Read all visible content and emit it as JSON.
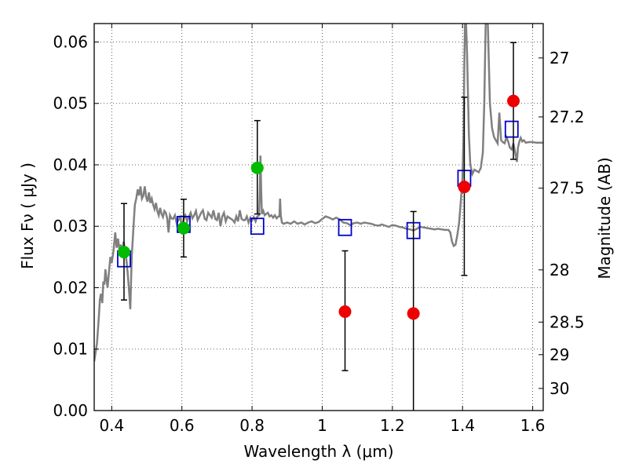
{
  "chart_data": {
    "type": "scatter",
    "xlabel": "Wavelength  λ (μm)",
    "ylabel": "Flux  Fν  ( μJy )",
    "ylabel_right": "Magnitude (AB)",
    "xlim": [
      0.35,
      1.63
    ],
    "ylim": [
      0.0,
      0.063
    ],
    "grid": true,
    "x_ticks": [
      0.4,
      0.6,
      0.8,
      1.0,
      1.2,
      1.4,
      1.6
    ],
    "x_tick_labels": [
      "0.4",
      "0.6",
      "0.8",
      "1",
      "1.2",
      "1.4",
      "1.6"
    ],
    "y_ticks": [
      0.0,
      0.01,
      0.02,
      0.03,
      0.04,
      0.05,
      0.06
    ],
    "y_tick_labels": [
      "0.00",
      "0.01",
      "0.02",
      "0.03",
      "0.04",
      "0.05",
      "0.06"
    ],
    "right_axis_ticks": [
      {
        "label": "27",
        "flux": 0.0574
      },
      {
        "label": "27.2",
        "flux": 0.0478
      },
      {
        "label": "27.5",
        "flux": 0.0362
      },
      {
        "label": "28",
        "flux": 0.0229
      },
      {
        "label": "28.5",
        "flux": 0.0144
      },
      {
        "label": "29",
        "flux": 0.0091
      },
      {
        "label": "30",
        "flux": 0.0036
      }
    ],
    "series": [
      {
        "marker": "line",
        "color": "#808080",
        "points": [
          [
            0.35,
            0.008
          ],
          [
            0.358,
            0.011
          ],
          [
            0.363,
            0.015
          ],
          [
            0.366,
            0.018
          ],
          [
            0.369,
            0.019
          ],
          [
            0.373,
            0.0175
          ],
          [
            0.376,
            0.021
          ],
          [
            0.379,
            0.0205
          ],
          [
            0.382,
            0.023
          ],
          [
            0.385,
            0.0215
          ],
          [
            0.388,
            0.02
          ],
          [
            0.392,
            0.0225
          ],
          [
            0.396,
            0.025
          ],
          [
            0.4,
            0.024
          ],
          [
            0.405,
            0.026
          ],
          [
            0.41,
            0.029
          ],
          [
            0.414,
            0.0265
          ],
          [
            0.418,
            0.028
          ],
          [
            0.422,
            0.026
          ],
          [
            0.426,
            0.027
          ],
          [
            0.43,
            0.0255
          ],
          [
            0.434,
            0.0275
          ],
          [
            0.438,
            0.026
          ],
          [
            0.442,
            0.0245
          ],
          [
            0.446,
            0.022
          ],
          [
            0.45,
            0.019
          ],
          [
            0.453,
            0.0165
          ],
          [
            0.457,
            0.025
          ],
          [
            0.462,
            0.03
          ],
          [
            0.466,
            0.0335
          ],
          [
            0.47,
            0.0345
          ],
          [
            0.474,
            0.036
          ],
          [
            0.478,
            0.035
          ],
          [
            0.482,
            0.0365
          ],
          [
            0.486,
            0.0345
          ],
          [
            0.49,
            0.035
          ],
          [
            0.494,
            0.0365
          ],
          [
            0.498,
            0.0348
          ],
          [
            0.502,
            0.034
          ],
          [
            0.506,
            0.0355
          ],
          [
            0.51,
            0.0338
          ],
          [
            0.514,
            0.0345
          ],
          [
            0.518,
            0.0335
          ],
          [
            0.522,
            0.0328
          ],
          [
            0.526,
            0.0338
          ],
          [
            0.53,
            0.0325
          ],
          [
            0.534,
            0.0318
          ],
          [
            0.538,
            0.033
          ],
          [
            0.542,
            0.032
          ],
          [
            0.546,
            0.0315
          ],
          [
            0.55,
            0.0325
          ],
          [
            0.554,
            0.0322
          ],
          [
            0.558,
            0.0313
          ],
          [
            0.562,
            0.029
          ],
          [
            0.566,
            0.0318
          ],
          [
            0.57,
            0.0313
          ],
          [
            0.575,
            0.0312
          ],
          [
            0.58,
            0.0318
          ],
          [
            0.585,
            0.0305
          ],
          [
            0.59,
            0.031
          ],
          [
            0.595,
            0.0315
          ],
          [
            0.6,
            0.03
          ],
          [
            0.605,
            0.0312
          ],
          [
            0.61,
            0.0318
          ],
          [
            0.615,
            0.0308
          ],
          [
            0.62,
            0.0316
          ],
          [
            0.625,
            0.0322
          ],
          [
            0.63,
            0.0313
          ],
          [
            0.635,
            0.0318
          ],
          [
            0.64,
            0.0325
          ],
          [
            0.645,
            0.031
          ],
          [
            0.65,
            0.0316
          ],
          [
            0.655,
            0.0322
          ],
          [
            0.66,
            0.0326
          ],
          [
            0.665,
            0.0312
          ],
          [
            0.67,
            0.031
          ],
          [
            0.675,
            0.0322
          ],
          [
            0.68,
            0.0318
          ],
          [
            0.685,
            0.0314
          ],
          [
            0.69,
            0.0326
          ],
          [
            0.695,
            0.0312
          ],
          [
            0.7,
            0.031
          ],
          [
            0.705,
            0.0322
          ],
          [
            0.71,
            0.03
          ],
          [
            0.715,
            0.0316
          ],
          [
            0.72,
            0.0322
          ],
          [
            0.725,
            0.0308
          ],
          [
            0.73,
            0.0316
          ],
          [
            0.735,
            0.0314
          ],
          [
            0.74,
            0.0312
          ],
          [
            0.745,
            0.031
          ],
          [
            0.75,
            0.0306
          ],
          [
            0.755,
            0.0316
          ],
          [
            0.76,
            0.0308
          ],
          [
            0.765,
            0.0326
          ],
          [
            0.77,
            0.0312
          ],
          [
            0.775,
            0.031
          ],
          [
            0.78,
            0.031
          ],
          [
            0.785,
            0.0316
          ],
          [
            0.79,
            0.0306
          ],
          [
            0.795,
            0.0314
          ],
          [
            0.8,
            0.031
          ],
          [
            0.805,
            0.0315
          ],
          [
            0.81,
            0.0308
          ],
          [
            0.815,
            0.0316
          ],
          [
            0.82,
            0.0318
          ],
          [
            0.822,
            0.0355
          ],
          [
            0.824,
            0.0415
          ],
          [
            0.826,
            0.036
          ],
          [
            0.828,
            0.032
          ],
          [
            0.832,
            0.0325
          ],
          [
            0.836,
            0.0318
          ],
          [
            0.84,
            0.032
          ],
          [
            0.845,
            0.0322
          ],
          [
            0.85,
            0.0316
          ],
          [
            0.855,
            0.0318
          ],
          [
            0.86,
            0.0314
          ],
          [
            0.865,
            0.0318
          ],
          [
            0.87,
            0.0313
          ],
          [
            0.875,
            0.0316
          ],
          [
            0.878,
            0.0316
          ],
          [
            0.88,
            0.0345
          ],
          [
            0.882,
            0.0318
          ],
          [
            0.885,
            0.0306
          ],
          [
            0.89,
            0.0304
          ],
          [
            0.9,
            0.0306
          ],
          [
            0.91,
            0.0304
          ],
          [
            0.92,
            0.0308
          ],
          [
            0.93,
            0.0304
          ],
          [
            0.94,
            0.0306
          ],
          [
            0.95,
            0.0303
          ],
          [
            0.96,
            0.0306
          ],
          [
            0.97,
            0.0308
          ],
          [
            0.98,
            0.0305
          ],
          [
            0.99,
            0.0307
          ],
          [
            1.0,
            0.0312
          ],
          [
            1.01,
            0.0316
          ],
          [
            1.02,
            0.0314
          ],
          [
            1.03,
            0.0311
          ],
          [
            1.04,
            0.0314
          ],
          [
            1.05,
            0.0311
          ],
          [
            1.06,
            0.0306
          ],
          [
            1.07,
            0.0305
          ],
          [
            1.08,
            0.0302
          ],
          [
            1.09,
            0.0305
          ],
          [
            1.1,
            0.0306
          ],
          [
            1.11,
            0.0304
          ],
          [
            1.12,
            0.0306
          ],
          [
            1.13,
            0.0305
          ],
          [
            1.14,
            0.0304
          ],
          [
            1.15,
            0.0302
          ],
          [
            1.16,
            0.0301
          ],
          [
            1.17,
            0.0303
          ],
          [
            1.18,
            0.0301
          ],
          [
            1.19,
            0.0299
          ],
          [
            1.2,
            0.0302
          ],
          [
            1.21,
            0.0301
          ],
          [
            1.22,
            0.0299
          ],
          [
            1.23,
            0.0298
          ],
          [
            1.24,
            0.0296
          ],
          [
            1.25,
            0.0295
          ],
          [
            1.26,
            0.0293
          ],
          [
            1.27,
            0.0296
          ],
          [
            1.28,
            0.0299
          ],
          [
            1.29,
            0.0298
          ],
          [
            1.3,
            0.0297
          ],
          [
            1.31,
            0.0296
          ],
          [
            1.32,
            0.0295
          ],
          [
            1.33,
            0.0296
          ],
          [
            1.34,
            0.0295
          ],
          [
            1.35,
            0.0294
          ],
          [
            1.36,
            0.0294
          ],
          [
            1.365,
            0.029
          ],
          [
            1.37,
            0.0275
          ],
          [
            1.375,
            0.0268
          ],
          [
            1.38,
            0.027
          ],
          [
            1.385,
            0.0285
          ],
          [
            1.39,
            0.0305
          ],
          [
            1.395,
            0.034
          ],
          [
            1.4,
            0.038
          ],
          [
            1.403,
            0.045
          ],
          [
            1.405,
            0.056
          ],
          [
            1.407,
            0.063
          ],
          [
            1.41,
            0.063
          ],
          [
            1.413,
            0.058
          ],
          [
            1.418,
            0.045
          ],
          [
            1.422,
            0.04
          ],
          [
            1.428,
            0.0385
          ],
          [
            1.434,
            0.0392
          ],
          [
            1.44,
            0.039
          ],
          [
            1.446,
            0.0388
          ],
          [
            1.452,
            0.0395
          ],
          [
            1.458,
            0.042
          ],
          [
            1.462,
            0.05
          ],
          [
            1.466,
            0.063
          ],
          [
            1.472,
            0.063
          ],
          [
            1.478,
            0.05
          ],
          [
            1.484,
            0.046
          ],
          [
            1.49,
            0.0445
          ],
          [
            1.495,
            0.044
          ],
          [
            1.5,
            0.0435
          ],
          [
            1.505,
            0.0485
          ],
          [
            1.51,
            0.044
          ],
          [
            1.515,
            0.0437
          ],
          [
            1.52,
            0.0435
          ],
          [
            1.525,
            0.0445
          ],
          [
            1.53,
            0.0438
          ],
          [
            1.535,
            0.0428
          ],
          [
            1.54,
            0.0425
          ],
          [
            1.545,
            0.0435
          ],
          [
            1.55,
            0.042
          ],
          [
            1.555,
            0.0405
          ],
          [
            1.558,
            0.0428
          ],
          [
            1.562,
            0.0438
          ],
          [
            1.566,
            0.0444
          ],
          [
            1.57,
            0.0438
          ],
          [
            1.575,
            0.044
          ],
          [
            1.58,
            0.0436
          ],
          [
            1.59,
            0.0437
          ],
          [
            1.6,
            0.0437
          ],
          [
            1.61,
            0.0436
          ],
          [
            1.62,
            0.0436
          ],
          [
            1.63,
            0.0436
          ]
        ]
      },
      {
        "marker": "open-square",
        "color": "#0000cc",
        "x": [
          0.435,
          0.605,
          0.815,
          1.065,
          1.26,
          1.405,
          1.54
        ],
        "y": [
          0.0247,
          0.0303,
          0.03,
          0.0298,
          0.0293,
          0.0378,
          0.0458
        ]
      },
      {
        "marker": "circle",
        "color": "#00bb00",
        "x": [
          0.435,
          0.605,
          0.815
        ],
        "y": [
          0.0258,
          0.0297,
          0.0395
        ],
        "err_low": [
          0.018,
          0.025,
          0.032
        ],
        "err_high": [
          0.0337,
          0.0344,
          0.0472
        ]
      },
      {
        "marker": "circle",
        "color": "#ee0000",
        "x": [
          1.065,
          1.26,
          1.405,
          1.545
        ],
        "y": [
          0.0161,
          0.0158,
          0.0364,
          0.0504
        ],
        "err_low": [
          0.0065,
          0.0,
          0.022,
          0.0409
        ],
        "err_high": [
          0.026,
          0.0324,
          0.051,
          0.0599
        ]
      }
    ]
  }
}
